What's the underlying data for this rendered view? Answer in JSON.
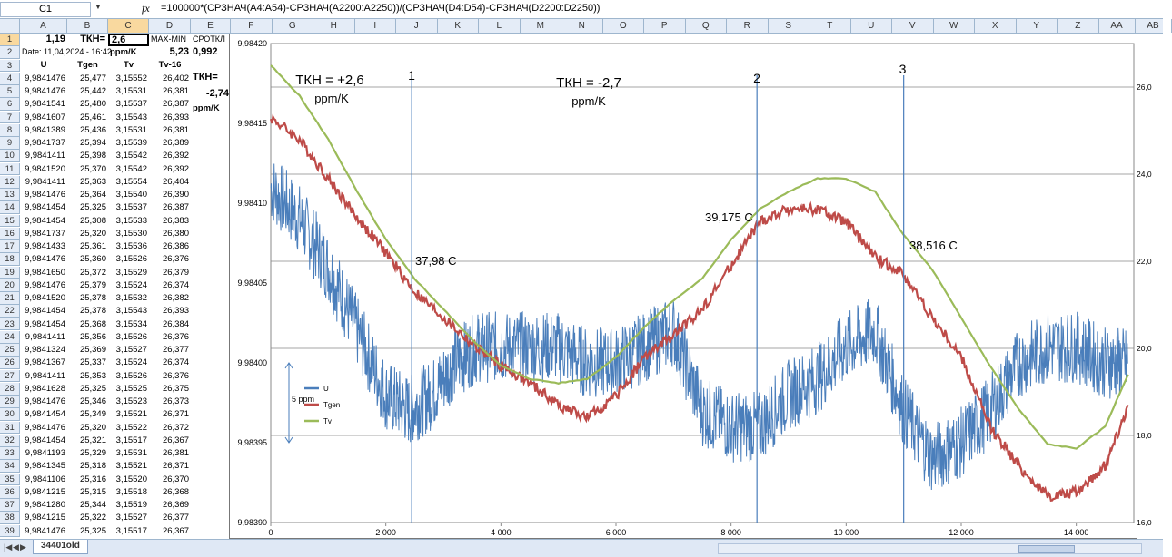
{
  "formula_bar": {
    "name_box": "C1",
    "fx": "fx",
    "formula": "=100000*(СРЗНАЧ(A4:A54)-СРЗНАЧ(A2200:A2250))/(СРЗНАЧ(D4:D54)-СРЗНАЧ(D2200:D2250))"
  },
  "columns": [
    "A",
    "B",
    "C",
    "D",
    "E",
    "F",
    "G",
    "H",
    "I",
    "J",
    "K",
    "L",
    "M",
    "N",
    "O",
    "P",
    "Q",
    "R",
    "S",
    "T",
    "U",
    "V",
    "W",
    "X",
    "Y",
    "Z",
    "AA",
    "AB"
  ],
  "selected_column": "C",
  "row_numbers": [
    "1",
    "2",
    "3",
    "4",
    "5",
    "6",
    "7",
    "8",
    "9",
    "10",
    "11",
    "12",
    "13",
    "14",
    "15",
    "16",
    "17",
    "18",
    "19",
    "20",
    "21",
    "22",
    "23",
    "24",
    "25",
    "26",
    "27",
    "28",
    "29",
    "30",
    "31",
    "32",
    "33",
    "34",
    "35",
    "36",
    "37",
    "38",
    "39"
  ],
  "row1": {
    "a": "1,19",
    "b": "ТКН=",
    "c": "2,6",
    "d": "MAX-MIN",
    "e": "СРОТКЛ"
  },
  "row2": {
    "a": "Date: 11,04,2024 - 16:42",
    "c": "ppm/K",
    "d": "5,23",
    "e": "0,992"
  },
  "row3": {
    "a": "U",
    "b": "Tgen",
    "c": "Tv",
    "d": "Tv-16"
  },
  "side_labels": {
    "tkn": "ТКН=",
    "tkn_value": "-2,74",
    "unit": "ppm/K"
  },
  "table_rows": [
    [
      "9,9841476",
      "25,477",
      "3,15552",
      "26,402"
    ],
    [
      "9,9841476",
      "25,442",
      "3,15531",
      "26,381"
    ],
    [
      "9,9841541",
      "25,480",
      "3,15537",
      "26,387"
    ],
    [
      "9,9841607",
      "25,461",
      "3,15543",
      "26,393"
    ],
    [
      "9,9841389",
      "25,436",
      "3,15531",
      "26,381"
    ],
    [
      "9,9841737",
      "25,394",
      "3,15539",
      "26,389"
    ],
    [
      "9,9841411",
      "25,398",
      "3,15542",
      "26,392"
    ],
    [
      "9,9841520",
      "25,370",
      "3,15542",
      "26,392"
    ],
    [
      "9,9841411",
      "25,363",
      "3,15554",
      "26,404"
    ],
    [
      "9,9841476",
      "25,364",
      "3,15540",
      "26,390"
    ],
    [
      "9,9841454",
      "25,325",
      "3,15537",
      "26,387"
    ],
    [
      "9,9841454",
      "25,308",
      "3,15533",
      "26,383"
    ],
    [
      "9,9841737",
      "25,320",
      "3,15530",
      "26,380"
    ],
    [
      "9,9841433",
      "25,361",
      "3,15536",
      "26,386"
    ],
    [
      "9,9841476",
      "25,360",
      "3,15526",
      "26,376"
    ],
    [
      "9,9841650",
      "25,372",
      "3,15529",
      "26,379"
    ],
    [
      "9,9841476",
      "25,379",
      "3,15524",
      "26,374"
    ],
    [
      "9,9841520",
      "25,378",
      "3,15532",
      "26,382"
    ],
    [
      "9,9841454",
      "25,378",
      "3,15543",
      "26,393"
    ],
    [
      "9,9841454",
      "25,368",
      "3,15534",
      "26,384"
    ],
    [
      "9,9841411",
      "25,356",
      "3,15526",
      "26,376"
    ],
    [
      "9,9841324",
      "25,369",
      "3,15527",
      "26,377"
    ],
    [
      "9,9841367",
      "25,337",
      "3,15524",
      "26,374"
    ],
    [
      "9,9841411",
      "25,353",
      "3,15526",
      "26,376"
    ],
    [
      "9,9841628",
      "25,325",
      "3,15525",
      "26,375"
    ],
    [
      "9,9841476",
      "25,346",
      "3,15523",
      "26,373"
    ],
    [
      "9,9841454",
      "25,349",
      "3,15521",
      "26,371"
    ],
    [
      "9,9841476",
      "25,320",
      "3,15522",
      "26,372"
    ],
    [
      "9,9841454",
      "25,321",
      "3,15517",
      "26,367"
    ],
    [
      "9,9841193",
      "25,329",
      "3,15531",
      "26,381"
    ],
    [
      "9,9841345",
      "25,318",
      "3,15521",
      "26,371"
    ],
    [
      "9,9841106",
      "25,316",
      "3,15520",
      "26,370"
    ],
    [
      "9,9841215",
      "25,315",
      "3,15518",
      "26,368"
    ],
    [
      "9,9841280",
      "25,344",
      "3,15519",
      "26,369"
    ],
    [
      "9,9841215",
      "25,322",
      "3,15527",
      "26,377"
    ],
    [
      "9,9841476",
      "25,325",
      "3,15517",
      "26,367"
    ]
  ],
  "sheet_tab": "34401old",
  "chart_data": {
    "type": "line",
    "x_ticks": [
      "0",
      "2 000",
      "4 000",
      "6 000",
      "8 000",
      "10 000",
      "12 000",
      "14 000"
    ],
    "x_tick_values": [
      0,
      2000,
      4000,
      6000,
      8000,
      10000,
      12000,
      14000
    ],
    "xlim": [
      0,
      15000
    ],
    "ylim_left": [
      9.9839,
      9.9842
    ],
    "y_ticks_left": [
      "9,98390",
      "9,98395",
      "9,98400",
      "9,98405",
      "9,98410",
      "9,98415",
      "9,98420"
    ],
    "y_tick_values_left": [
      9.9839,
      9.98395,
      9.984,
      9.98405,
      9.9841,
      9.98415,
      9.9842
    ],
    "ylim_right": [
      16.0,
      27.0
    ],
    "y_ticks_right": [
      "16,0",
      "18,0",
      "20,0",
      "22,0",
      "24,0",
      "26,0"
    ],
    "y_tick_values_right": [
      16,
      18,
      20,
      22,
      24,
      26
    ],
    "grid": true,
    "legend_position": "bottom-left",
    "series": [
      {
        "name": "U",
        "axis": "left",
        "color": "#4a7ebb",
        "x": [
          0,
          500,
          1000,
          1500,
          2000,
          2400,
          2800,
          3200,
          3600,
          4000,
          4500,
          5000,
          5500,
          6000,
          6500,
          7000,
          7500,
          8000,
          8500,
          9000,
          9500,
          10000,
          10500,
          11000,
          11500,
          12000,
          12500,
          13000,
          13500,
          14000,
          14500,
          14900
        ],
        "y": [
          9.98411,
          9.98409,
          9.98406,
          9.98402,
          9.98398,
          9.98397,
          9.98398,
          9.984,
          9.98401,
          9.98401,
          9.98401,
          9.98401,
          9.984,
          9.984,
          9.98401,
          9.98402,
          9.98397,
          9.98396,
          9.98396,
          9.98398,
          9.98399,
          9.98401,
          9.98402,
          9.98397,
          9.98394,
          9.98395,
          9.98397,
          9.984,
          9.98401,
          9.98401,
          9.984,
          9.984
        ]
      },
      {
        "name": "Tgen",
        "axis": "right",
        "color": "#be4b48",
        "x": [
          0,
          500,
          1000,
          1500,
          2000,
          2500,
          3000,
          3500,
          4000,
          4500,
          5000,
          5500,
          6000,
          6500,
          7000,
          7500,
          8000,
          8500,
          9000,
          9500,
          10000,
          10500,
          11000,
          11500,
          12000,
          12500,
          13000,
          13500,
          14000,
          14500,
          14900
        ],
        "y": [
          25.3,
          24.8,
          23.9,
          23.0,
          22.2,
          21.3,
          20.7,
          20.1,
          19.6,
          19.2,
          18.7,
          18.4,
          18.9,
          19.8,
          20.3,
          20.9,
          21.9,
          22.9,
          23.2,
          23.2,
          22.9,
          22.1,
          21.7,
          20.7,
          19.8,
          18.2,
          17.3,
          16.6,
          16.7,
          17.3,
          18.7
        ]
      },
      {
        "name": "Tv",
        "axis": "right",
        "color": "#9bbb59",
        "x": [
          0,
          500,
          1000,
          1500,
          2000,
          2500,
          3000,
          3500,
          4000,
          4500,
          5000,
          5500,
          6000,
          6500,
          7000,
          7500,
          8000,
          8500,
          9000,
          9500,
          10000,
          10500,
          11000,
          11500,
          12000,
          12500,
          13000,
          13500,
          14000,
          14500,
          14900
        ],
        "y": [
          26.5,
          25.8,
          24.8,
          23.6,
          22.5,
          21.6,
          20.9,
          20.2,
          19.6,
          19.3,
          19.2,
          19.3,
          19.8,
          20.5,
          21.1,
          21.6,
          22.5,
          23.2,
          23.6,
          23.9,
          23.9,
          23.6,
          22.6,
          21.8,
          20.7,
          19.6,
          18.6,
          17.8,
          17.7,
          18.2,
          19.4
        ]
      }
    ],
    "annotations": {
      "tkn_plus": "ТКН = +2,6",
      "tkn_plus_unit": "ppm/K",
      "tkn_minus": "ТКН = -2,7",
      "tkn_minus_unit": "ppm/K",
      "marker1": "1",
      "marker2": "2",
      "marker3": "3",
      "temp1": "37,98 C",
      "temp2": "39,175 C",
      "temp3": "38,516 C",
      "scale": "5 ppm"
    },
    "vertical_markers_x": [
      2450,
      8450,
      11000
    ]
  }
}
